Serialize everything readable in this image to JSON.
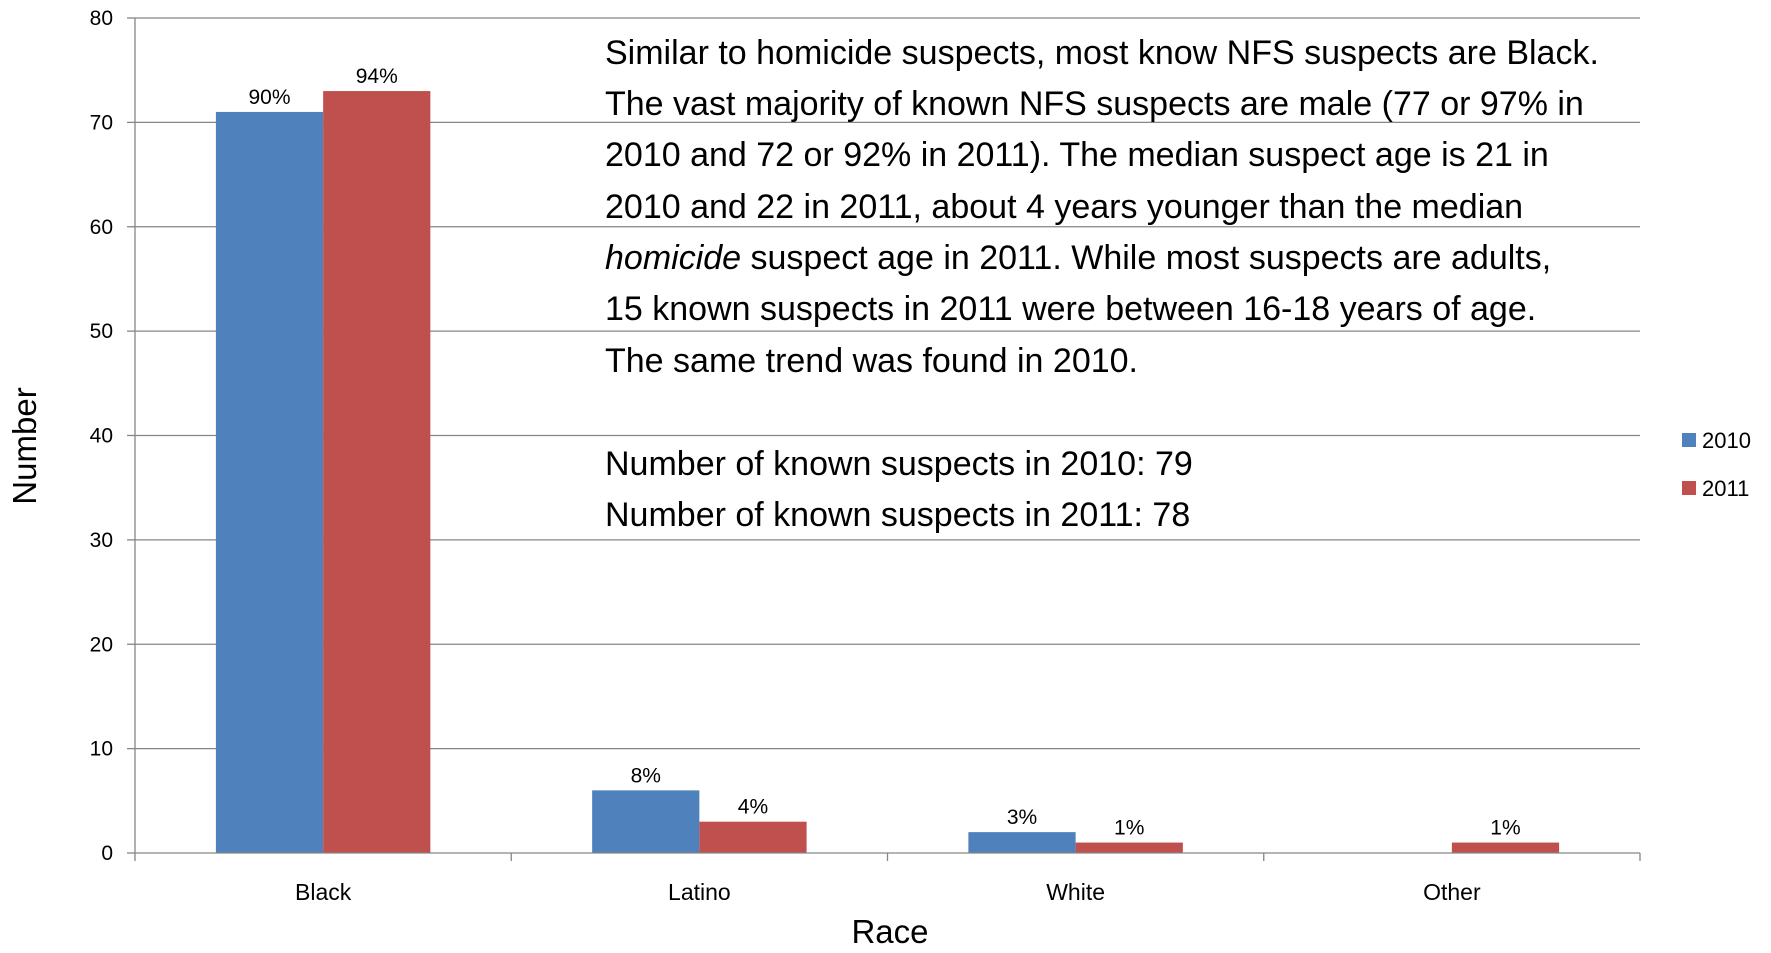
{
  "chart_data": {
    "type": "bar",
    "xlabel": "Race",
    "ylabel": "Number",
    "ylim": [
      0,
      80
    ],
    "yticks": [
      0,
      10,
      20,
      30,
      40,
      50,
      60,
      70,
      80
    ],
    "grid": true,
    "legend_position": "right",
    "categories": [
      "Black",
      "Latino",
      "White",
      "Other"
    ],
    "series": [
      {
        "name": "2010",
        "color": "#4F81BD",
        "values": [
          71,
          6,
          2,
          0
        ],
        "labels": [
          "90%",
          "8%",
          "3%",
          ""
        ]
      },
      {
        "name": "2011",
        "color": "#C0504D",
        "values": [
          73,
          3,
          1,
          1
        ],
        "labels": [
          "94%",
          "4%",
          "1%",
          "1%"
        ]
      }
    ],
    "annotation": {
      "line1": "Similar to homicide suspects, most know NFS suspects are Black.",
      "line2": "The vast majority of known NFS suspects are male (77 or 97% in",
      "line3": "2010 and 72 or 92% in 2011). The median suspect age is 21 in",
      "line4": "2010 and 22 in 2011, about 4 years younger than the median",
      "line5_emphasis": "homicide",
      "line5_rest": " suspect age in 2011. While most suspects are adults,",
      "line6": "15 known suspects in 2011 were between 16-18 years of age.",
      "line7": "The same trend was found in 2010.",
      "count_2010": "Number of known suspects in 2010: 79",
      "count_2011": "Number of known suspects in 2011: 78"
    }
  }
}
